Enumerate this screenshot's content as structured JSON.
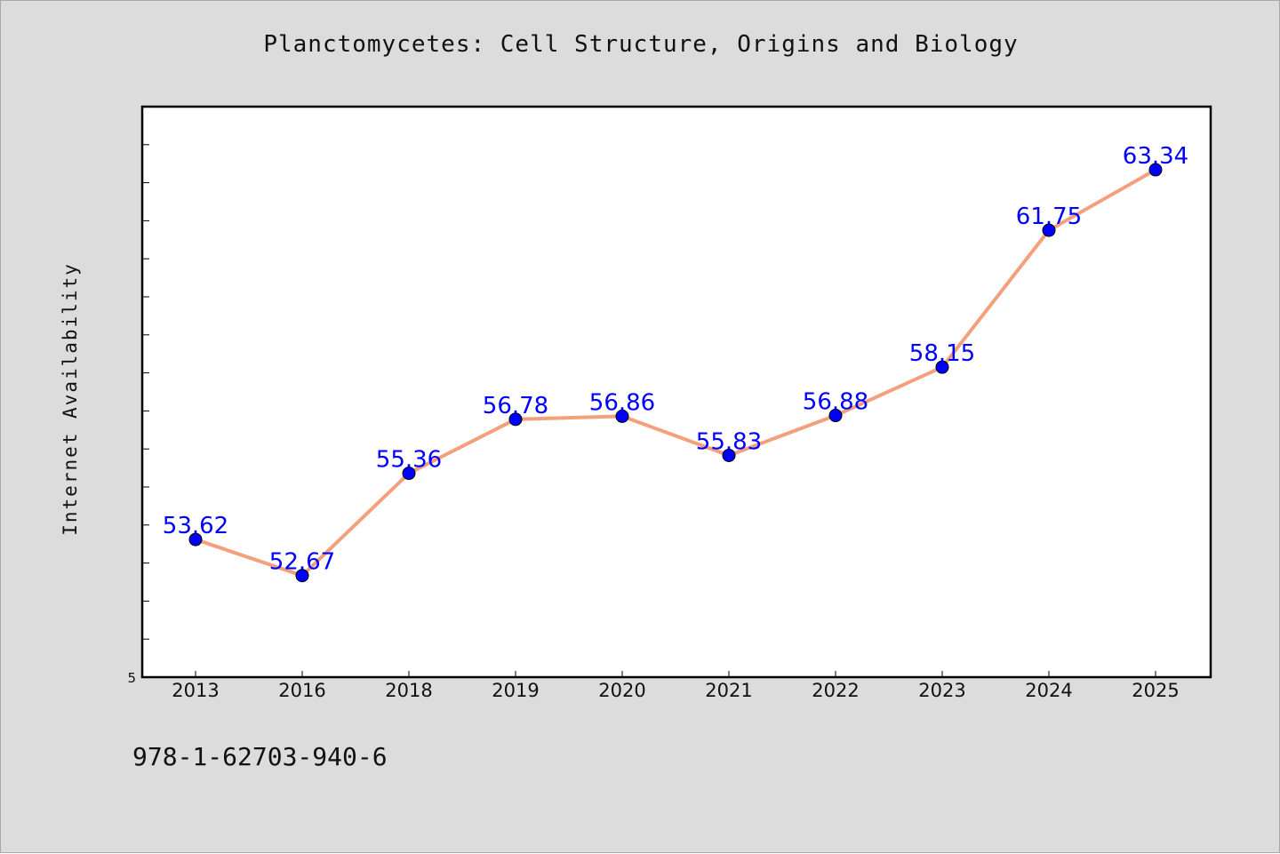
{
  "title": "Planctomycetes: Cell Structure, Origins and Biology",
  "footnote": "978-1-62703-940-6",
  "colors": {
    "background": "#dcdcdc",
    "plot_background": "#ffffff",
    "line": "#f4a07c",
    "marker": "#0000ff",
    "label": "#0000ff"
  },
  "chart_data": {
    "type": "line",
    "title": "Planctomycetes: Cell Structure, Origins and Biology",
    "xlabel": "",
    "ylabel": "Internet Availability",
    "categories": [
      "2013",
      "2016",
      "2018",
      "2019",
      "2020",
      "2021",
      "2022",
      "2023",
      "2024",
      "2025"
    ],
    "values": [
      53.62,
      52.67,
      55.36,
      56.78,
      56.86,
      55.83,
      56.88,
      58.15,
      61.75,
      63.34
    ],
    "value_labels": [
      "53.62",
      "52.67",
      "55.36",
      "56.78",
      "56.86",
      "55.83",
      "56.88",
      "58.15",
      "61.75",
      "63.34"
    ],
    "ylim": [
      50,
      65
    ],
    "y_tick_labels": [
      "5"
    ],
    "grid": false,
    "legend": "none"
  }
}
